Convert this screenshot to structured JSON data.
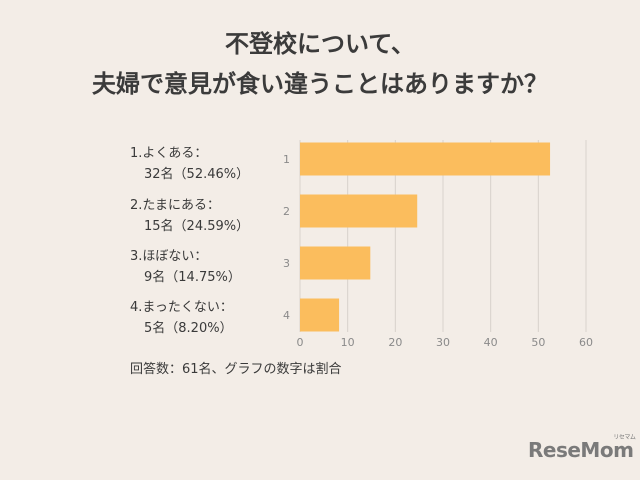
{
  "title": {
    "line1": "不登校について、",
    "line2": "夫婦で意見が食い違うことはありますか？"
  },
  "labels": [
    {
      "line1": "1.よくある：",
      "line2": "32名（52.46%）"
    },
    {
      "line1": "2.たまにある：",
      "line2": "15名（24.59%）"
    },
    {
      "line1": "3.ほぼない：",
      "line2": "9名（14.75%）"
    },
    {
      "line1": "4.まったくない：",
      "line2": "5名（8.20%）"
    }
  ],
  "footnote": "回答数：61名、グラフの数字は割合",
  "logo": {
    "text": "ReseMom",
    "reading": "リセマム"
  },
  "colors": {
    "bar": "#fbbd5d",
    "grid": "#d8d2cc",
    "background": "#f3ede7"
  },
  "chart_data": {
    "type": "bar",
    "orientation": "horizontal",
    "categories": [
      "1",
      "2",
      "3",
      "4"
    ],
    "values": [
      52.46,
      24.59,
      14.75,
      8.2
    ],
    "xlim": [
      0,
      60
    ],
    "xticks": [
      0,
      10,
      20,
      30,
      40,
      50,
      60
    ],
    "grid": "vertical",
    "legend": "none"
  }
}
